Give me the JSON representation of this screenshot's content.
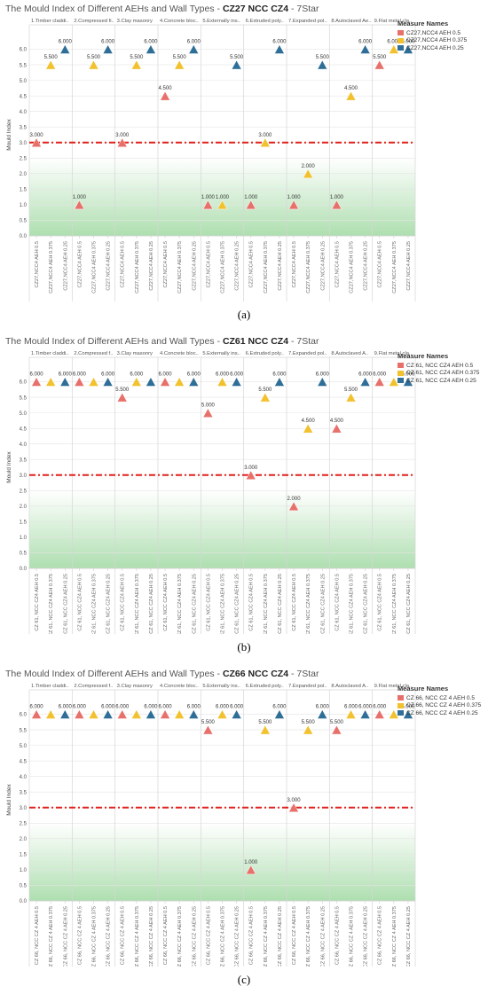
{
  "colors": {
    "red": "#e8706b",
    "yellow": "#f2c12e",
    "blue": "#2e6e97",
    "refline": "#e0201b",
    "green": "#6cc46e"
  },
  "chart_data": [
    {
      "type": "scatter",
      "title_prefix": "The Mould Index of Different AEHs and Wall Types",
      "title_bold": "CZ27 NCC CZ4",
      "title_suffix": "7Star",
      "caption": "(a)",
      "ylabel": "Mould Index",
      "ylim": [
        0,
        6.5
      ],
      "yticks": [
        "0.0",
        "0.5",
        "1.0",
        "1.5",
        "2.0",
        "2.5",
        "3.0",
        "3.5",
        "4.0",
        "4.5",
        "5.0",
        "5.5",
        "6.0"
      ],
      "reference_line": 3.0,
      "legend_title": "Measure Names",
      "measures": [
        "CZ27,NCC4 AEH 0.5",
        "CZ27,NCC4 AEH 0.375",
        "CZ27,NCC4 AEH 0.25"
      ],
      "categories": [
        "1.Timber claddi..",
        "2.Compressed fi..",
        "3.Clay masonry",
        "4.Concrete bloc..",
        "5.Externally ins..",
        "6.Extruded poly..",
        "7.Expanded pol..",
        "8.Autoclaved Ae..",
        "9.Flat metal cla.."
      ],
      "xticks": [
        "CZ27,NCC4 AEH 0.5",
        "CZ27,NCC4 AEH 0.375",
        "CZ27,NCC4 AEH 0.25"
      ],
      "series": [
        {
          "name": "CZ27,NCC4 AEH 0.5",
          "values": [
            3.0,
            1.0,
            3.0,
            4.5,
            1.0,
            1.0,
            1.0,
            1.0,
            5.5
          ],
          "labels": [
            "3.000",
            "1.000",
            "3.000",
            "4.500",
            "1.000",
            "1.000",
            "1.000",
            "1.000",
            "5.500"
          ]
        },
        {
          "name": "CZ27,NCC4 AEH 0.375",
          "values": [
            5.5,
            5.5,
            5.5,
            5.5,
            1.0,
            3.0,
            2.0,
            4.5,
            6.0
          ],
          "labels": [
            "5.500",
            "5.500",
            "5.500",
            "5.500",
            "1.000",
            "3.000",
            "2.000",
            "4.500",
            "6.000"
          ]
        },
        {
          "name": "CZ27,NCC4 AEH 0.25",
          "values": [
            6.0,
            6.0,
            6.0,
            6.0,
            5.5,
            6.0,
            5.5,
            6.0,
            6.0
          ],
          "labels": [
            "6.000",
            "6.000",
            "6.000",
            "6.000",
            "5.500",
            "6.000",
            "5.500",
            "6.000",
            "6.000"
          ]
        }
      ]
    },
    {
      "type": "scatter",
      "title_prefix": "The Mould Index of Different AEHs and Wall Types",
      "title_bold": "CZ61 NCC CZ4",
      "title_suffix": "7Star",
      "caption": "(b)",
      "ylabel": "Mould Index",
      "ylim": [
        0,
        6.5
      ],
      "yticks": [
        "0.0",
        "0.5",
        "1.0",
        "1.5",
        "2.0",
        "2.5",
        "3.0",
        "3.5",
        "4.0",
        "4.5",
        "5.0",
        "5.5",
        "6.0"
      ],
      "reference_line": 3.0,
      "legend_title": "Measure Names",
      "measures": [
        "CZ 61, NCC CZ4 AEH 0.5",
        "CZ 61, NCC CZ4 AEH 0.375",
        "CZ 61, NCC CZ4 AEH 0.25"
      ],
      "categories": [
        "1.Timber claddi..",
        "2.Compressed f..",
        "3.Clay masonry",
        "4.Concrete bloc..",
        "5.Externally ins..",
        "6.Extruded poly..",
        "7.Expanded pol..",
        "8.Autoclaved A..",
        "9.Flat metal cla.."
      ],
      "xticks": [
        "CZ 61, NCC CZ4 AEH 0.5",
        "CZ 61, NCC CZ4 AEH 0.375",
        "CZ 61, NCC CZ4 AEH 0.25"
      ],
      "series": [
        {
          "name": "CZ 61, NCC CZ4 AEH 0.5",
          "values": [
            6.0,
            6.0,
            5.5,
            6.0,
            5.0,
            3.0,
            2.0,
            4.5,
            6.0
          ],
          "labels": [
            "6.000",
            "6.000",
            "5.500",
            "6.000",
            "5.000",
            "3.000",
            "2.000",
            "4.500",
            "6.000"
          ]
        },
        {
          "name": "CZ 61, NCC CZ4 AEH 0.375",
          "values": [
            6.0,
            6.0,
            6.0,
            6.0,
            6.0,
            5.5,
            4.5,
            5.5,
            6.0
          ],
          "labels": [
            "",
            "",
            "6.000",
            "",
            "6.000",
            "5.500",
            "4.500",
            "5.500",
            ""
          ]
        },
        {
          "name": "CZ 61, NCC CZ4 AEH 0.25",
          "values": [
            6.0,
            6.0,
            6.0,
            6.0,
            6.0,
            6.0,
            6.0,
            6.0,
            6.0
          ],
          "labels": [
            "6.000",
            "6.000",
            "",
            "6.000",
            "6.000",
            "6.000",
            "6.000",
            "6.000",
            "6.000"
          ]
        }
      ]
    },
    {
      "type": "scatter",
      "title_prefix": "The Mould Index of Different AEHs and Wall Types",
      "title_bold": "CZ66 NCC CZ4",
      "title_suffix": "7Star",
      "caption": "(c)",
      "ylabel": "Mould Index",
      "ylim": [
        0,
        6.5
      ],
      "yticks": [
        "0.0",
        "0.5",
        "1.0",
        "1.5",
        "2.0",
        "2.5",
        "3.0",
        "3.5",
        "4.0",
        "4.5",
        "5.0",
        "5.5",
        "6.0"
      ],
      "reference_line": 3.0,
      "legend_title": "Measure Names",
      "measures": [
        "CZ 66, NCC CZ 4 AEH 0.5",
        "CZ 66, NCC CZ 4 AEH 0.375",
        "CZ 66, NCC CZ 4 AEH 0.25"
      ],
      "categories": [
        "1.Timber claddi..",
        "2.Compressed f..",
        "3.Clay masonry",
        "4.Concrete bloc..",
        "5.Externally ins..",
        "6.Extruded poly..",
        "7.Expanded pol..",
        "8.Autoclaved A..",
        "9.Flat metal cla.."
      ],
      "xticks": [
        "CZ 66, NCC CZ 4 AEH 0.5",
        "CZ 66, NCC CZ 4 AEH 0.375",
        "CZ 66, NCC CZ 4 AEH 0.25"
      ],
      "series": [
        {
          "name": "CZ 66, NCC CZ 4 AEH 0.5",
          "values": [
            6.0,
            6.0,
            6.0,
            6.0,
            5.5,
            1.0,
            3.0,
            5.5,
            6.0
          ],
          "labels": [
            "6.000",
            "6.000",
            "6.000",
            "6.000",
            "5.500",
            "1.000",
            "3.000",
            "5.500",
            "6.000"
          ]
        },
        {
          "name": "CZ 66, NCC CZ 4 AEH 0.375",
          "values": [
            6.0,
            6.0,
            6.0,
            6.0,
            6.0,
            5.5,
            5.5,
            6.0,
            6.0
          ],
          "labels": [
            "",
            "",
            "",
            "",
            "6.000",
            "5.500",
            "5.500",
            "6.000",
            ""
          ]
        },
        {
          "name": "CZ 66, NCC CZ 4 AEH 0.25",
          "values": [
            6.0,
            6.0,
            6.0,
            6.0,
            6.0,
            6.0,
            6.0,
            6.0,
            6.0
          ],
          "labels": [
            "6.000",
            "6.000",
            "6.000",
            "6.000",
            "6.000",
            "6.000",
            "6.000",
            "6.000",
            "6.000"
          ]
        }
      ]
    }
  ]
}
